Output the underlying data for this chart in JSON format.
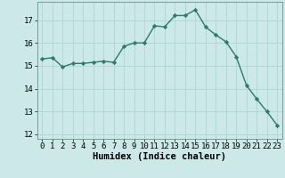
{
  "x": [
    0,
    1,
    2,
    3,
    4,
    5,
    6,
    7,
    8,
    9,
    10,
    11,
    12,
    13,
    14,
    15,
    16,
    17,
    18,
    19,
    20,
    21,
    22,
    23
  ],
  "y": [
    15.3,
    15.35,
    14.95,
    15.1,
    15.1,
    15.15,
    15.2,
    15.15,
    15.85,
    16.0,
    16.0,
    16.75,
    16.7,
    17.2,
    17.2,
    17.45,
    16.7,
    16.35,
    16.05,
    15.4,
    14.15,
    13.55,
    13.0,
    12.4
  ],
  "line_color": "#2d7a6e",
  "marker": "D",
  "marker_size": 2.2,
  "background_color": "#cce8e8",
  "grid_color": "#b0d8d8",
  "xlabel": "Humidex (Indice chaleur)",
  "xlabel_fontsize": 7.5,
  "ylim": [
    11.8,
    17.8
  ],
  "xlim": [
    -0.5,
    23.5
  ],
  "yticks": [
    12,
    13,
    14,
    15,
    16,
    17
  ],
  "xticks": [
    0,
    1,
    2,
    3,
    4,
    5,
    6,
    7,
    8,
    9,
    10,
    11,
    12,
    13,
    14,
    15,
    16,
    17,
    18,
    19,
    20,
    21,
    22,
    23
  ],
  "tick_fontsize": 6.5,
  "line_width": 1.0
}
